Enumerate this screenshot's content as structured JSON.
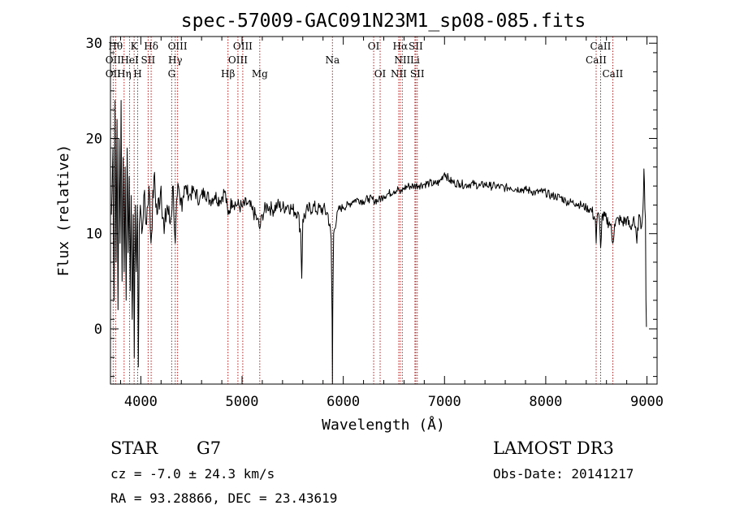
{
  "chart_data": {
    "type": "line",
    "title": "spec-57009-GAC091N23M1_sp08-085.fits",
    "xlabel": "Wavelength (Å)",
    "ylabel": "Flux (relative)",
    "xlim": [
      3700,
      9100
    ],
    "ylim": [
      -5.8,
      30.7
    ],
    "xticks": [
      4000,
      5000,
      6000,
      7000,
      8000,
      9000
    ],
    "yticks": [
      0,
      10,
      20,
      30
    ],
    "line_color": "#000000",
    "marker_color": "#b22222",
    "series": [
      {
        "name": "flux",
        "points": [
          [
            3710,
            12
          ],
          [
            3725,
            19
          ],
          [
            3735,
            3
          ],
          [
            3745,
            24
          ],
          [
            3755,
            7
          ],
          [
            3765,
            22
          ],
          [
            3775,
            2
          ],
          [
            3785,
            20
          ],
          [
            3795,
            9
          ],
          [
            3805,
            24
          ],
          [
            3815,
            5
          ],
          [
            3825,
            18
          ],
          [
            3835,
            6
          ],
          [
            3845,
            17
          ],
          [
            3855,
            3
          ],
          [
            3865,
            19
          ],
          [
            3875,
            8
          ],
          [
            3885,
            16
          ],
          [
            3895,
            4
          ],
          [
            3905,
            14
          ],
          [
            3915,
            1
          ],
          [
            3925,
            12
          ],
          [
            3935,
            -3
          ],
          [
            3945,
            13
          ],
          [
            3955,
            6
          ],
          [
            3965,
            13
          ],
          [
            3975,
            -4
          ],
          [
            3985,
            11
          ],
          [
            3995,
            13
          ],
          [
            4010,
            10
          ],
          [
            4030,
            14
          ],
          [
            4050,
            11
          ],
          [
            4080,
            15
          ],
          [
            4100,
            9
          ],
          [
            4130,
            16
          ],
          [
            4160,
            12
          ],
          [
            4200,
            15
          ],
          [
            4230,
            10
          ],
          [
            4260,
            13
          ],
          [
            4290,
            11
          ],
          [
            4320,
            15
          ],
          [
            4340,
            9
          ],
          [
            4360,
            14
          ],
          [
            4390,
            13
          ],
          [
            4430,
            15
          ],
          [
            4480,
            14
          ],
          [
            4530,
            14.5
          ],
          [
            4580,
            13.5
          ],
          [
            4630,
            14.5
          ],
          [
            4680,
            13.5
          ],
          [
            4730,
            14
          ],
          [
            4780,
            13.5
          ],
          [
            4830,
            14.5
          ],
          [
            4861,
            12
          ],
          [
            4900,
            13.5
          ],
          [
            4950,
            13
          ],
          [
            5000,
            12.8
          ],
          [
            5050,
            13.2
          ],
          [
            5100,
            12.5
          ],
          [
            5150,
            11.5
          ],
          [
            5175,
            10.5
          ],
          [
            5200,
            12
          ],
          [
            5250,
            13
          ],
          [
            5300,
            12.5
          ],
          [
            5350,
            13
          ],
          [
            5400,
            12.7
          ],
          [
            5450,
            13
          ],
          [
            5500,
            12.5
          ],
          [
            5550,
            12.3
          ],
          [
            5580,
            10
          ],
          [
            5590,
            5.3
          ],
          [
            5600,
            11.5
          ],
          [
            5650,
            12.5
          ],
          [
            5700,
            12.8
          ],
          [
            5750,
            12.5
          ],
          [
            5800,
            12.6
          ],
          [
            5850,
            12
          ],
          [
            5880,
            9.5
          ],
          [
            5890,
            1
          ],
          [
            5893,
            -5.8
          ],
          [
            5896,
            2
          ],
          [
            5905,
            10
          ],
          [
            5950,
            12.5
          ],
          [
            6000,
            12.8
          ],
          [
            6050,
            13
          ],
          [
            6100,
            13.5
          ],
          [
            6150,
            13.6
          ],
          [
            6200,
            13.4
          ],
          [
            6250,
            13.7
          ],
          [
            6300,
            13.5
          ],
          [
            6350,
            13.5
          ],
          [
            6400,
            14
          ],
          [
            6450,
            14.2
          ],
          [
            6500,
            14.5
          ],
          [
            6550,
            14.7
          ],
          [
            6563,
            14.2
          ],
          [
            6600,
            14.8
          ],
          [
            6650,
            15
          ],
          [
            6700,
            15
          ],
          [
            6750,
            15.1
          ],
          [
            6800,
            15.2
          ],
          [
            6850,
            15.3
          ],
          [
            6900,
            15.2
          ],
          [
            6950,
            15.4
          ],
          [
            7000,
            16.4
          ],
          [
            7050,
            15.6
          ],
          [
            7100,
            15.3
          ],
          [
            7150,
            15.3
          ],
          [
            7200,
            15.1
          ],
          [
            7250,
            15.2
          ],
          [
            7300,
            15.2
          ],
          [
            7350,
            15
          ],
          [
            7400,
            15.2
          ],
          [
            7450,
            15
          ],
          [
            7500,
            15
          ],
          [
            7550,
            14.9
          ],
          [
            7600,
            14.8
          ],
          [
            7650,
            14.9
          ],
          [
            7700,
            14.7
          ],
          [
            7750,
            14.7
          ],
          [
            7800,
            14.6
          ],
          [
            7850,
            14.5
          ],
          [
            7900,
            14.3
          ],
          [
            7950,
            14.4
          ],
          [
            8000,
            14.3
          ],
          [
            8050,
            14
          ],
          [
            8100,
            13.9
          ],
          [
            8150,
            13.8
          ],
          [
            8200,
            13.4
          ],
          [
            8250,
            13.3
          ],
          [
            8300,
            13.2
          ],
          [
            8350,
            13
          ],
          [
            8400,
            12.7
          ],
          [
            8450,
            12.5
          ],
          [
            8490,
            11.5
          ],
          [
            8498,
            9
          ],
          [
            8510,
            12
          ],
          [
            8530,
            11.5
          ],
          [
            8542,
            8.5
          ],
          [
            8555,
            11.8
          ],
          [
            8600,
            11.5
          ],
          [
            8640,
            11
          ],
          [
            8662,
            9
          ],
          [
            8680,
            11
          ],
          [
            8720,
            11.5
          ],
          [
            8760,
            11.2
          ],
          [
            8800,
            11.5
          ],
          [
            8840,
            10.5
          ],
          [
            8870,
            11.8
          ],
          [
            8900,
            9
          ],
          [
            8920,
            12
          ],
          [
            8940,
            10.5
          ],
          [
            8960,
            12.5
          ],
          [
            8970,
            16.8
          ],
          [
            8985,
            11.5
          ],
          [
            8990,
            3
          ],
          [
            8995,
            0.2
          ]
        ]
      }
    ],
    "lines": [
      {
        "name": "OII",
        "wavelength": 3727
      },
      {
        "name": "Hθ",
        "wavelength": 3750
      },
      {
        "name": "Hη",
        "wavelength": 3835
      },
      {
        "name": "HeI",
        "wavelength": 3889
      },
      {
        "name": "K",
        "wavelength": 3934
      },
      {
        "name": "H",
        "wavelength": 3969
      },
      {
        "name": "SII",
        "wavelength": 4072
      },
      {
        "name": "Hδ",
        "wavelength": 4102
      },
      {
        "name": "G",
        "wavelength": 4305
      },
      {
        "name": "Hγ",
        "wavelength": 4340
      },
      {
        "name": "OIII",
        "wavelength": 4363
      },
      {
        "name": "Hβ",
        "wavelength": 4861
      },
      {
        "name": "OIII",
        "wavelength": 4959
      },
      {
        "name": "OIII",
        "wavelength": 5007
      },
      {
        "name": "Mg",
        "wavelength": 5175
      },
      {
        "name": "Na",
        "wavelength": 5893
      },
      {
        "name": "OI",
        "wavelength": 6300
      },
      {
        "name": "OI",
        "wavelength": 6364
      },
      {
        "name": "NII",
        "wavelength": 6548
      },
      {
        "name": "Hα",
        "wavelength": 6563
      },
      {
        "name": "NII",
        "wavelength": 6583
      },
      {
        "name": "Li",
        "wavelength": 6708
      },
      {
        "name": "SII",
        "wavelength": 6716
      },
      {
        "name": "SII",
        "wavelength": 6731
      },
      {
        "name": "CaII",
        "wavelength": 8498
      },
      {
        "name": "CaII",
        "wavelength": 8542
      },
      {
        "name": "CaII",
        "wavelength": 8662
      }
    ],
    "line_labels": [
      {
        "text": "Hθ",
        "wavelength": 3750,
        "row": 0
      },
      {
        "text": "K",
        "wavelength": 3934,
        "row": 0
      },
      {
        "text": "Hδ",
        "wavelength": 4102,
        "row": 0
      },
      {
        "text": "OIII",
        "wavelength": 4363,
        "row": 0
      },
      {
        "text": "OIII",
        "wavelength": 5007,
        "row": 0
      },
      {
        "text": "OI",
        "wavelength": 6300,
        "row": 0
      },
      {
        "text": "Hα",
        "wavelength": 6563,
        "row": 0
      },
      {
        "text": "SII",
        "wavelength": 6716,
        "row": 0
      },
      {
        "text": "CaII",
        "wavelength": 8542,
        "row": 0
      },
      {
        "text": "OII",
        "wavelength": 3727,
        "row": 1
      },
      {
        "text": "HeI",
        "wavelength": 3889,
        "row": 1
      },
      {
        "text": "SII",
        "wavelength": 4072,
        "row": 1
      },
      {
        "text": "Hγ",
        "wavelength": 4340,
        "row": 1
      },
      {
        "text": "OIII",
        "wavelength": 4959,
        "row": 1
      },
      {
        "text": "Na",
        "wavelength": 5893,
        "row": 1
      },
      {
        "text": "NII",
        "wavelength": 6583,
        "row": 1
      },
      {
        "text": "Li",
        "wavelength": 6708,
        "row": 1
      },
      {
        "text": "CaII",
        "wavelength": 8498,
        "row": 1
      },
      {
        "text": "OII",
        "wavelength": 3727,
        "row": 2
      },
      {
        "text": "Hη",
        "wavelength": 3835,
        "row": 2
      },
      {
        "text": "H",
        "wavelength": 3969,
        "row": 2
      },
      {
        "text": "G",
        "wavelength": 4305,
        "row": 2
      },
      {
        "text": "Hβ",
        "wavelength": 4861,
        "row": 2
      },
      {
        "text": "Mg",
        "wavelength": 5175,
        "row": 2
      },
      {
        "text": "OI",
        "wavelength": 6364,
        "row": 2
      },
      {
        "text": "NII",
        "wavelength": 6548,
        "row": 2
      },
      {
        "text": "SII",
        "wavelength": 6731,
        "row": 2
      },
      {
        "text": "CaII",
        "wavelength": 8662,
        "row": 2
      }
    ]
  },
  "info": {
    "object_class": "STAR",
    "subclass": "G7",
    "survey": "LAMOST DR3",
    "redshift": "cz = -7.0 ± 24.3 km/s",
    "obs_date": "Obs-Date: 20141217",
    "coords": "RA =  93.28866, DEC =  23.43619"
  }
}
